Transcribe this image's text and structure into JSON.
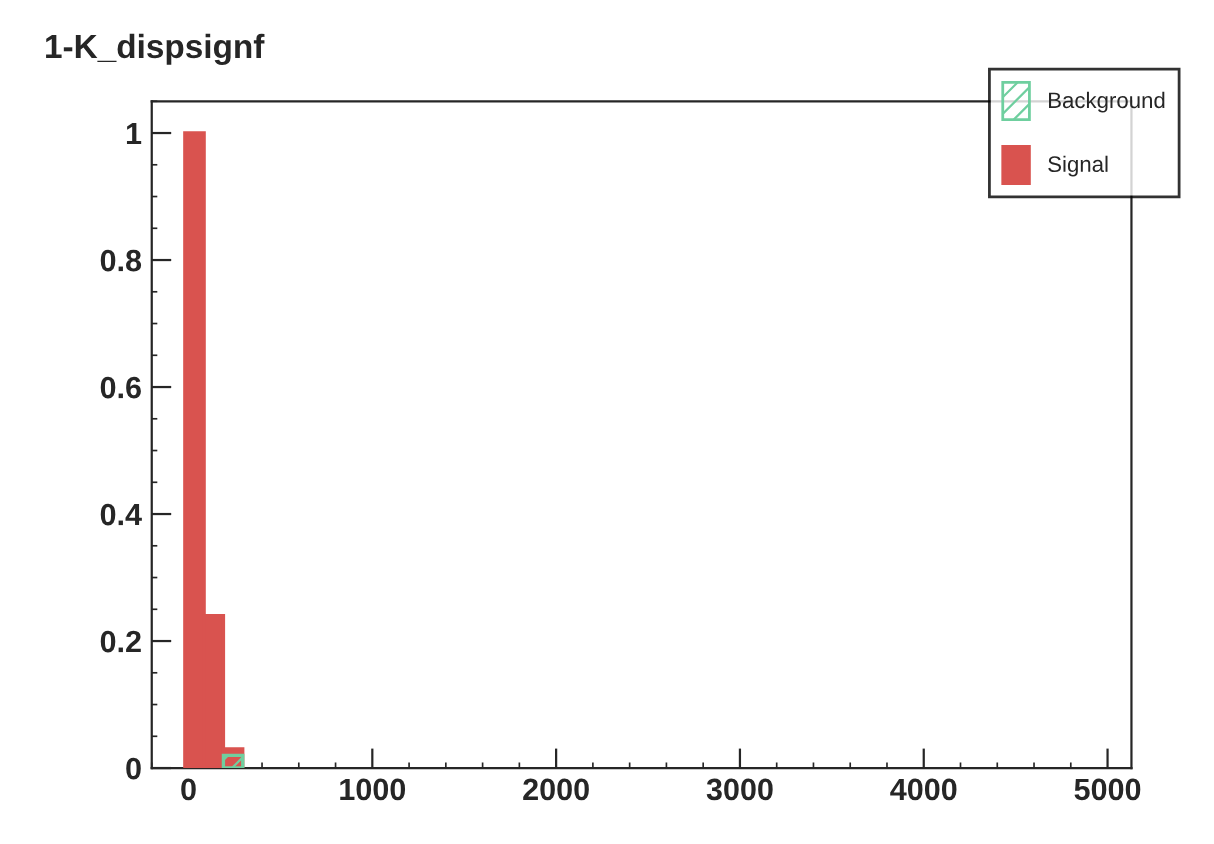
{
  "chart_data": {
    "type": "histogram",
    "title": "1-K_dispsignf",
    "bins": [
      -20,
      85,
      190,
      295
    ],
    "series": [
      {
        "name": "Background",
        "color": "#6fcf9f",
        "values": [
          null,
          null,
          0.02
        ]
      },
      {
        "name": "Signal",
        "color": "#d9534f",
        "values": [
          1.0,
          0.24,
          0.03
        ]
      }
    ],
    "xlim": [
      -200,
      5130
    ],
    "xticks": [
      0,
      1000,
      2000,
      3000,
      4000,
      5000
    ],
    "ylim": [
      0,
      1.05
    ],
    "yticks": [
      0,
      0.2,
      0.4,
      0.6,
      0.8,
      1
    ],
    "grid": false,
    "legend": "top right"
  }
}
